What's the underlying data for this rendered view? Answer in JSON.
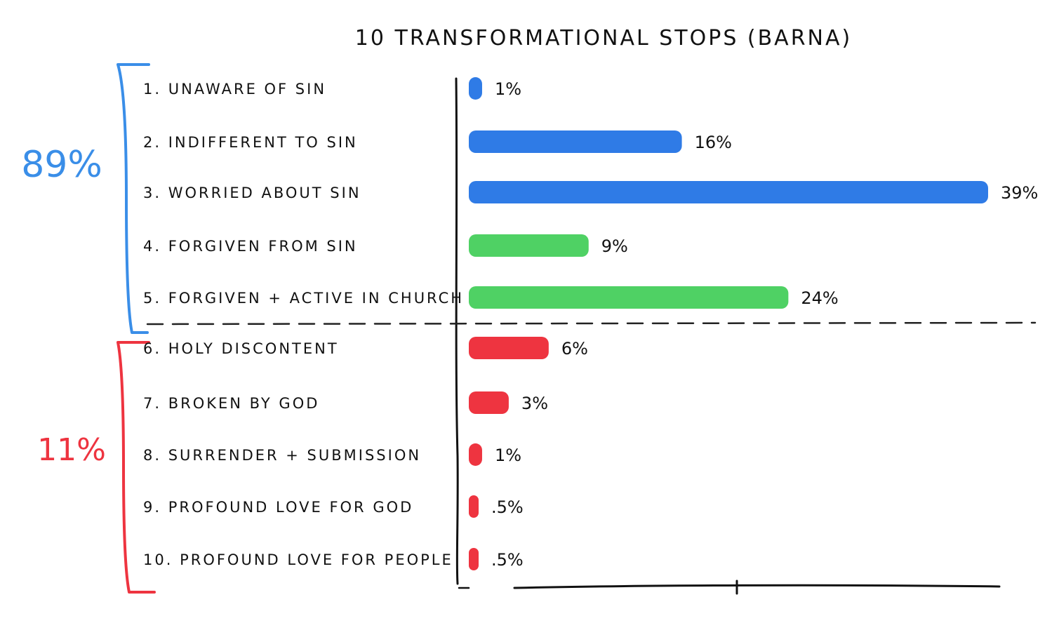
{
  "chart_data": {
    "type": "bar",
    "orientation": "horizontal",
    "title": "10 TRANSFORMATIONAL STOPS (BARNA)",
    "categories": [
      "1. UNAWARE OF SIN",
      "2. INDIFFERENT TO SIN",
      "3. WORRIED ABOUT SIN",
      "4. FORGIVEN FROM SIN",
      "5. FORGIVEN + ACTIVE IN CHURCH",
      "6. HOLY DISCONTENT",
      "7. BROKEN BY GOD",
      "8. SURRENDER + SUBMISSION",
      "9. PROFOUND LOVE FOR GOD",
      "10. PROFOUND LOVE FOR PEOPLE"
    ],
    "values": [
      1,
      16,
      39,
      9,
      24,
      6,
      3,
      1,
      0.5,
      0.5
    ],
    "value_labels": [
      "1%",
      "16%",
      "39%",
      "9%",
      "24%",
      "6%",
      "3%",
      "1%",
      ".5%",
      ".5%"
    ],
    "bar_colors": [
      "#2f7be6",
      "#2f7be6",
      "#2f7be6",
      "#4fd164",
      "#4fd164",
      "#ee3440",
      "#ee3440",
      "#ee3440",
      "#ee3440",
      "#ee3440"
    ],
    "xlim": [
      0,
      39
    ],
    "grid": false,
    "groups": [
      {
        "label": "89%",
        "color": "#3a8ee8",
        "from": 0,
        "to": 4
      },
      {
        "label": "11%",
        "color": "#ee3440",
        "from": 5,
        "to": 9
      }
    ],
    "divider_after_index": 4
  }
}
